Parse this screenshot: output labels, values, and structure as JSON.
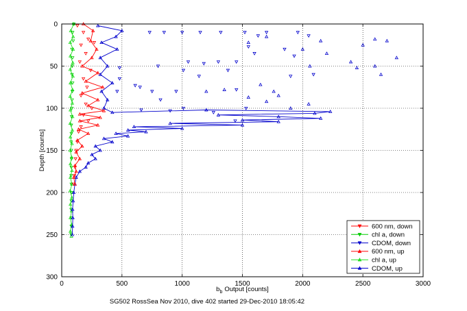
{
  "chart_data": {
    "type": "scatter",
    "xlabel": "Output [counts]",
    "xlabel_prefix": "b",
    "xlabel_sub": "b",
    "ylabel": "Depth [counts]",
    "caption": "SG502 RossSea Nov 2010, dive 402 started 29-Dec-2010 18:05:42",
    "xlim": [
      0,
      3000
    ],
    "ylim": [
      0,
      300
    ],
    "y_reversed": true,
    "xticks": [
      0,
      500,
      1000,
      1500,
      2000,
      2500,
      3000
    ],
    "yticks": [
      0,
      50,
      100,
      150,
      200,
      250,
      300
    ],
    "grid": true,
    "legend_position": "bottom-right",
    "series": [
      {
        "name": "600 nm, down",
        "color": "#ff0000",
        "marker": "triangle-down",
        "line": false,
        "points": [
          [
            130,
            2
          ],
          [
            180,
            10
          ],
          [
            220,
            18
          ],
          [
            160,
            25
          ],
          [
            270,
            22
          ],
          [
            200,
            35
          ],
          [
            150,
            45
          ],
          [
            240,
            55
          ],
          [
            180,
            65
          ],
          [
            210,
            75
          ],
          [
            160,
            85
          ],
          [
            200,
            95
          ],
          [
            250,
            100
          ],
          [
            180,
            108
          ],
          [
            220,
            115
          ],
          [
            160,
            122
          ],
          [
            140,
            128
          ],
          [
            130,
            140
          ],
          [
            120,
            150
          ],
          [
            115,
            160
          ],
          [
            110,
            170
          ],
          [
            105,
            180
          ],
          [
            100,
            190
          ]
        ]
      },
      {
        "name": "chl a, down",
        "color": "#00cc00",
        "marker": "triangle-down",
        "line": false,
        "points": [
          [
            100,
            0
          ],
          [
            90,
            10
          ],
          [
            95,
            20
          ],
          [
            85,
            30
          ],
          [
            90,
            40
          ],
          [
            88,
            50
          ],
          [
            85,
            60
          ],
          [
            90,
            70
          ],
          [
            88,
            80
          ],
          [
            86,
            90
          ],
          [
            84,
            100
          ],
          [
            82,
            110
          ],
          [
            80,
            120
          ],
          [
            80,
            130
          ],
          [
            78,
            140
          ],
          [
            80,
            150
          ],
          [
            82,
            160
          ],
          [
            80,
            170
          ],
          [
            78,
            180
          ],
          [
            80,
            190
          ],
          [
            82,
            200
          ],
          [
            80,
            210
          ],
          [
            78,
            220
          ],
          [
            80,
            230
          ],
          [
            80,
            240
          ],
          [
            78,
            250
          ]
        ]
      },
      {
        "name": "CDOM, down",
        "color": "#0000cc",
        "marker": "triangle-down",
        "line": false,
        "points": [
          [
            730,
            10
          ],
          [
            850,
            10
          ],
          [
            1000,
            10
          ],
          [
            1150,
            10
          ],
          [
            1320,
            10
          ],
          [
            1520,
            10
          ],
          [
            1630,
            14
          ],
          [
            1700,
            10
          ],
          [
            1960,
            10
          ],
          [
            2050,
            14
          ],
          [
            1850,
            30
          ],
          [
            1550,
            27
          ],
          [
            1600,
            35
          ],
          [
            1450,
            45
          ],
          [
            1300,
            45
          ],
          [
            1180,
            47
          ],
          [
            1050,
            45
          ],
          [
            800,
            50
          ],
          [
            480,
            52
          ],
          [
            480,
            65
          ],
          [
            1140,
            62
          ],
          [
            1010,
            55
          ],
          [
            1380,
            55
          ],
          [
            1930,
            38
          ],
          [
            2090,
            60
          ],
          [
            1900,
            62
          ],
          [
            610,
            73
          ],
          [
            460,
            80
          ],
          [
            650,
            75
          ],
          [
            950,
            80
          ],
          [
            750,
            80
          ],
          [
            1450,
            78
          ],
          [
            820,
            90
          ],
          [
            660,
            102
          ],
          [
            1260,
            105
          ],
          [
            1530,
            100
          ],
          [
            1440,
            115
          ],
          [
            1010,
            100
          ],
          [
            900,
            103
          ]
        ]
      },
      {
        "name": "600 nm, up",
        "color": "#ff0000",
        "marker": "triangle-up",
        "line": true,
        "points": [
          [
            180,
            0
          ],
          [
            260,
            8
          ],
          [
            240,
            20
          ],
          [
            290,
            30
          ],
          [
            250,
            40
          ],
          [
            170,
            50
          ],
          [
            300,
            58
          ],
          [
            200,
            68
          ],
          [
            340,
            75
          ],
          [
            170,
            82
          ],
          [
            300,
            90
          ],
          [
            220,
            97
          ],
          [
            350,
            103
          ],
          [
            150,
            107
          ],
          [
            320,
            111
          ],
          [
            150,
            115
          ],
          [
            300,
            120
          ],
          [
            140,
            125
          ],
          [
            220,
            130
          ],
          [
            130,
            138
          ],
          [
            170,
            145
          ],
          [
            120,
            152
          ],
          [
            150,
            160
          ],
          [
            110,
            168
          ],
          [
            120,
            175
          ],
          [
            100,
            182
          ],
          [
            110,
            190
          ]
        ]
      },
      {
        "name": "chl a, up",
        "color": "#22dd22",
        "marker": "triangle-up",
        "line": true,
        "points": [
          [
            100,
            0
          ],
          [
            75,
            8
          ],
          [
            95,
            15
          ],
          [
            70,
            22
          ],
          [
            95,
            30
          ],
          [
            72,
            38
          ],
          [
            92,
            46
          ],
          [
            70,
            54
          ],
          [
            93,
            62
          ],
          [
            72,
            70
          ],
          [
            90,
            78
          ],
          [
            70,
            86
          ],
          [
            88,
            94
          ],
          [
            72,
            102
          ],
          [
            90,
            110
          ],
          [
            70,
            118
          ],
          [
            88,
            126
          ],
          [
            72,
            134
          ],
          [
            85,
            142
          ],
          [
            70,
            150
          ],
          [
            82,
            158
          ],
          [
            72,
            166
          ],
          [
            85,
            174
          ],
          [
            72,
            182
          ],
          [
            85,
            190
          ],
          [
            70,
            198
          ],
          [
            84,
            206
          ],
          [
            72,
            214
          ],
          [
            82,
            222
          ],
          [
            72,
            230
          ],
          [
            82,
            238
          ],
          [
            72,
            246
          ],
          [
            80,
            252
          ]
        ]
      },
      {
        "name": "CDOM, up",
        "color": "#0000cc",
        "marker": "triangle-up",
        "line": true,
        "points": [
          [
            300,
            2
          ],
          [
            500,
            8
          ],
          [
            450,
            15
          ],
          [
            330,
            22
          ],
          [
            460,
            30
          ],
          [
            320,
            40
          ],
          [
            380,
            50
          ],
          [
            320,
            60
          ],
          [
            420,
            70
          ],
          [
            330,
            80
          ],
          [
            380,
            90
          ],
          [
            350,
            100
          ],
          [
            420,
            105
          ],
          [
            1200,
            102
          ],
          [
            2230,
            104
          ],
          [
            2100,
            106
          ],
          [
            1300,
            108
          ],
          [
            1800,
            110
          ],
          [
            2150,
            112
          ],
          [
            1500,
            114
          ],
          [
            1800,
            116
          ],
          [
            900,
            118
          ],
          [
            1500,
            120
          ],
          [
            600,
            122
          ],
          [
            1000,
            124
          ],
          [
            550,
            126
          ],
          [
            700,
            128
          ],
          [
            450,
            130
          ],
          [
            550,
            133
          ],
          [
            350,
            136
          ],
          [
            420,
            140
          ],
          [
            280,
            145
          ],
          [
            320,
            150
          ],
          [
            250,
            155
          ],
          [
            280,
            160
          ],
          [
            220,
            165
          ],
          [
            200,
            170
          ],
          [
            150,
            175
          ],
          [
            120,
            182
          ],
          [
            110,
            190
          ],
          [
            100,
            200
          ],
          [
            95,
            210
          ],
          [
            90,
            220
          ],
          [
            92,
            230
          ],
          [
            90,
            240
          ],
          [
            88,
            250
          ]
        ],
        "scatter_points": [
          [
            1700,
            15
          ],
          [
            1550,
            22
          ],
          [
            2150,
            20
          ],
          [
            2600,
            18
          ],
          [
            2500,
            25
          ],
          [
            2700,
            20
          ],
          [
            2000,
            30
          ],
          [
            2200,
            35
          ],
          [
            2400,
            45
          ],
          [
            2600,
            50
          ],
          [
            2650,
            60
          ],
          [
            2780,
            40
          ],
          [
            1350,
            78
          ],
          [
            1650,
            72
          ],
          [
            1760,
            80
          ],
          [
            2450,
            52
          ],
          [
            2060,
            50
          ],
          [
            1200,
            80
          ],
          [
            1800,
            85
          ],
          [
            1550,
            87
          ],
          [
            1700,
            92
          ],
          [
            1900,
            100
          ],
          [
            2050,
            95
          ]
        ]
      }
    ]
  }
}
